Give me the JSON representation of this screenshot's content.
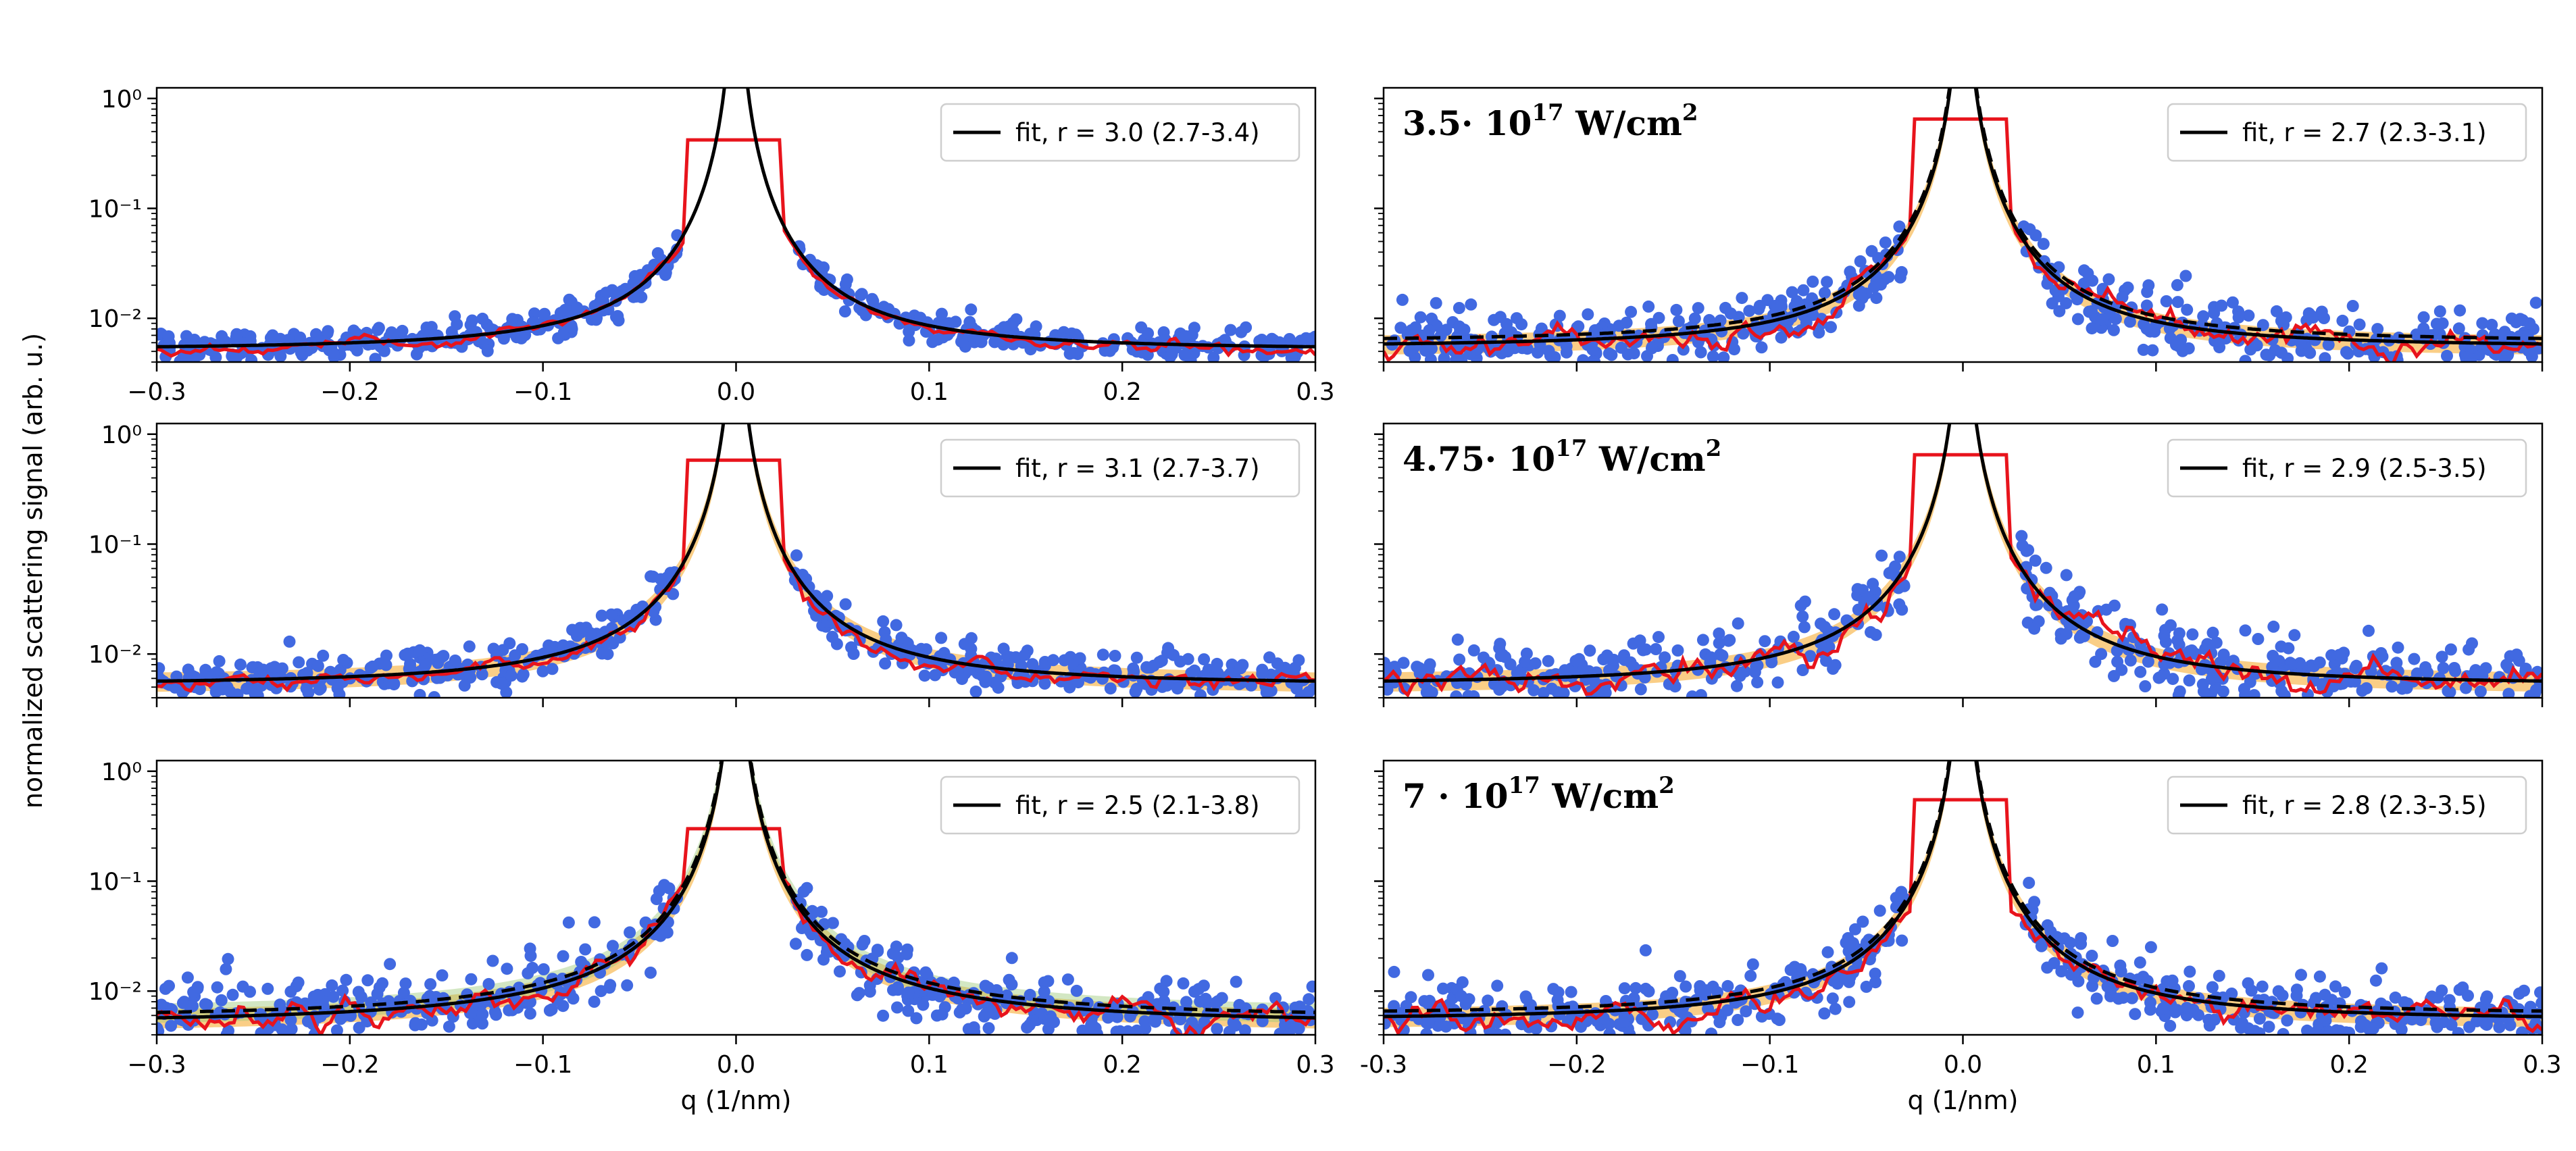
{
  "figure": {
    "ylabel": "normalized scattering signal (arb. u.)",
    "colors": {
      "data_points": "#4169e1",
      "average_line": "#e8141c",
      "fit_line": "#000000",
      "band_orange": "#f6a623",
      "band_green": "#9ec97a"
    }
  },
  "chart_data": [
    {
      "id": "left-top",
      "type": "scatter",
      "xlim": [
        -0.3,
        0.3
      ],
      "ylim": [
        0.004,
        1.25
      ],
      "yscale": "log",
      "xticks": [
        -0.3,
        -0.2,
        -0.1,
        0.0,
        0.1,
        0.2,
        0.3
      ],
      "xticklabels": [
        "−0.3",
        "−0.2",
        "−0.1",
        "0.0",
        "0.1",
        "0.2",
        "0.3"
      ],
      "yticklabels": [
        "10⁰",
        "10⁻¹",
        "10⁻²"
      ],
      "legend": "fit, r = 3.0 (2.7-3.4)",
      "annotation": null,
      "xlabel": null,
      "fit": {
        "peak_halfwidth": 0.0072,
        "baseline": 0.0052,
        "tilt": 0.0022,
        "dashed": false
      },
      "average_plateau": 0.42,
      "plateau_halfwidth": 0.025,
      "scatter": {
        "count": 520,
        "noise": 0.16
      },
      "band": null
    },
    {
      "id": "right-top",
      "type": "scatter",
      "xlim": [
        -0.3,
        0.3
      ],
      "ylim": [
        0.004,
        1.25
      ],
      "yscale": "log",
      "xticks": [
        -0.3,
        -0.2,
        -0.1,
        0.0,
        0.1,
        0.2,
        0.3
      ],
      "xticklabels": [],
      "yticklabels": [],
      "legend": "fit, r = 2.7 (2.3-3.1)",
      "annotation": {
        "prefix": "3.5· 10",
        "exponent": "17",
        "unit": " W/cm",
        "unit_exponent": "2"
      },
      "xlabel": null,
      "fit": {
        "peak_halfwidth": 0.0078,
        "baseline": 0.0055,
        "tilt": 0.0015,
        "dashed": true
      },
      "average_plateau": 0.65,
      "plateau_halfwidth": 0.025,
      "scatter": {
        "count": 520,
        "noise": 0.34
      },
      "band": "orange"
    },
    {
      "id": "left-middle",
      "type": "scatter",
      "xlim": [
        -0.3,
        0.3
      ],
      "ylim": [
        0.004,
        1.25
      ],
      "yscale": "log",
      "xticks": [
        -0.3,
        -0.2,
        -0.1,
        0.0,
        0.1,
        0.2,
        0.3
      ],
      "xticklabels": [],
      "yticklabels": [
        "10⁰",
        "10⁻¹",
        "10⁻²"
      ],
      "legend": "fit, r = 3.1 (2.7-3.7)",
      "annotation": null,
      "xlabel": null,
      "fit": {
        "peak_halfwidth": 0.0078,
        "baseline": 0.0053,
        "tilt": 0.0025,
        "dashed": false
      },
      "average_plateau": 0.58,
      "plateau_halfwidth": 0.025,
      "scatter": {
        "count": 520,
        "noise": 0.24
      },
      "band": "orange"
    },
    {
      "id": "right-middle",
      "type": "scatter",
      "xlim": [
        -0.3,
        0.3
      ],
      "ylim": [
        0.004,
        1.25
      ],
      "yscale": "log",
      "xticks": [
        -0.3,
        -0.2,
        -0.1,
        0.0,
        0.1,
        0.2,
        0.3
      ],
      "xticklabels": [],
      "yticklabels": [],
      "legend": "fit, r = 2.9 (2.5-3.5)",
      "annotation": {
        "prefix": "4.75· 10",
        "exponent": "17",
        "unit": " W/cm",
        "unit_exponent": "2"
      },
      "xlabel": null,
      "fit": {
        "peak_halfwidth": 0.0082,
        "baseline": 0.0053,
        "tilt": 0.001,
        "dashed": false
      },
      "average_plateau": 0.65,
      "plateau_halfwidth": 0.025,
      "scatter": {
        "count": 480,
        "noise": 0.4
      },
      "band": "orange"
    },
    {
      "id": "left-bottom",
      "type": "scatter",
      "xlim": [
        -0.3,
        0.3
      ],
      "ylim": [
        0.004,
        1.25
      ],
      "yscale": "log",
      "xticks": [
        -0.3,
        -0.2,
        -0.1,
        0.0,
        0.1,
        0.2,
        0.3
      ],
      "xticklabels": [
        "−0.3",
        "−0.2",
        "−0.1",
        "0.0",
        "0.1",
        "0.2",
        "0.3"
      ],
      "yticklabels": [
        "10⁰",
        "10⁻¹",
        "10⁻²"
      ],
      "legend": "fit, r = 2.5 (2.1-3.8)",
      "annotation": null,
      "xlabel": "q (1/nm)",
      "fit": {
        "peak_halfwidth": 0.0085,
        "baseline": 0.0052,
        "tilt": 0.0065,
        "dashed": true
      },
      "average_plateau": 0.3,
      "plateau_halfwidth": 0.025,
      "scatter": {
        "count": 520,
        "noise": 0.38
      },
      "band": "orange-green"
    },
    {
      "id": "right-bottom",
      "type": "scatter",
      "xlim": [
        -0.3,
        0.3
      ],
      "ylim": [
        0.004,
        1.25
      ],
      "yscale": "log",
      "xticks": [
        -0.3,
        -0.2,
        -0.1,
        0.0,
        0.1,
        0.2,
        0.3
      ],
      "xticklabels": [
        "-0.3",
        "−0.2",
        "−0.1",
        "0.0",
        "0.1",
        "0.2",
        "0.3"
      ],
      "yticklabels": [],
      "legend": "fit, r = 2.8 (2.3-3.5)",
      "annotation": {
        "prefix": "7 · 10",
        "exponent": "17",
        "unit": " W/cm",
        "unit_exponent": "2"
      },
      "xlabel": "q (1/nm)",
      "fit": {
        "peak_halfwidth": 0.008,
        "baseline": 0.0055,
        "tilt": 0.0015,
        "dashed": true
      },
      "average_plateau": 0.55,
      "plateau_halfwidth": 0.025,
      "scatter": {
        "count": 520,
        "noise": 0.34
      },
      "band": "orange"
    }
  ]
}
